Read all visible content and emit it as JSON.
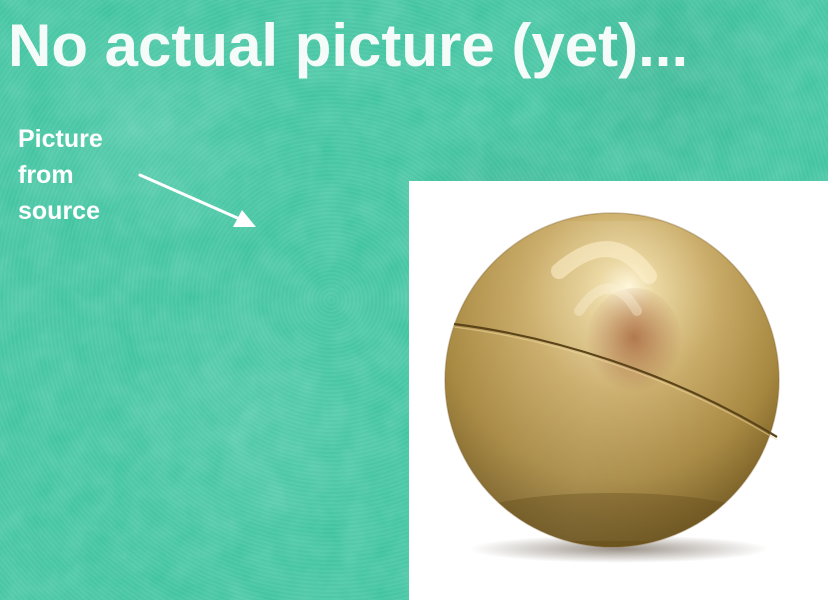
{
  "title": "No actual picture (yet)...",
  "annotation": {
    "lines": [
      "Picture",
      "from",
      "source"
    ]
  },
  "icons": {
    "arrow": "arrow-pointer-icon",
    "photo": "brass-sphere-photo"
  },
  "colors": {
    "background": "#40c6a2",
    "title_text": "#f4fbf8",
    "annotation_text": "#ffffff",
    "photo_background": "#ffffff",
    "sphere_brass": "#c6a861"
  }
}
